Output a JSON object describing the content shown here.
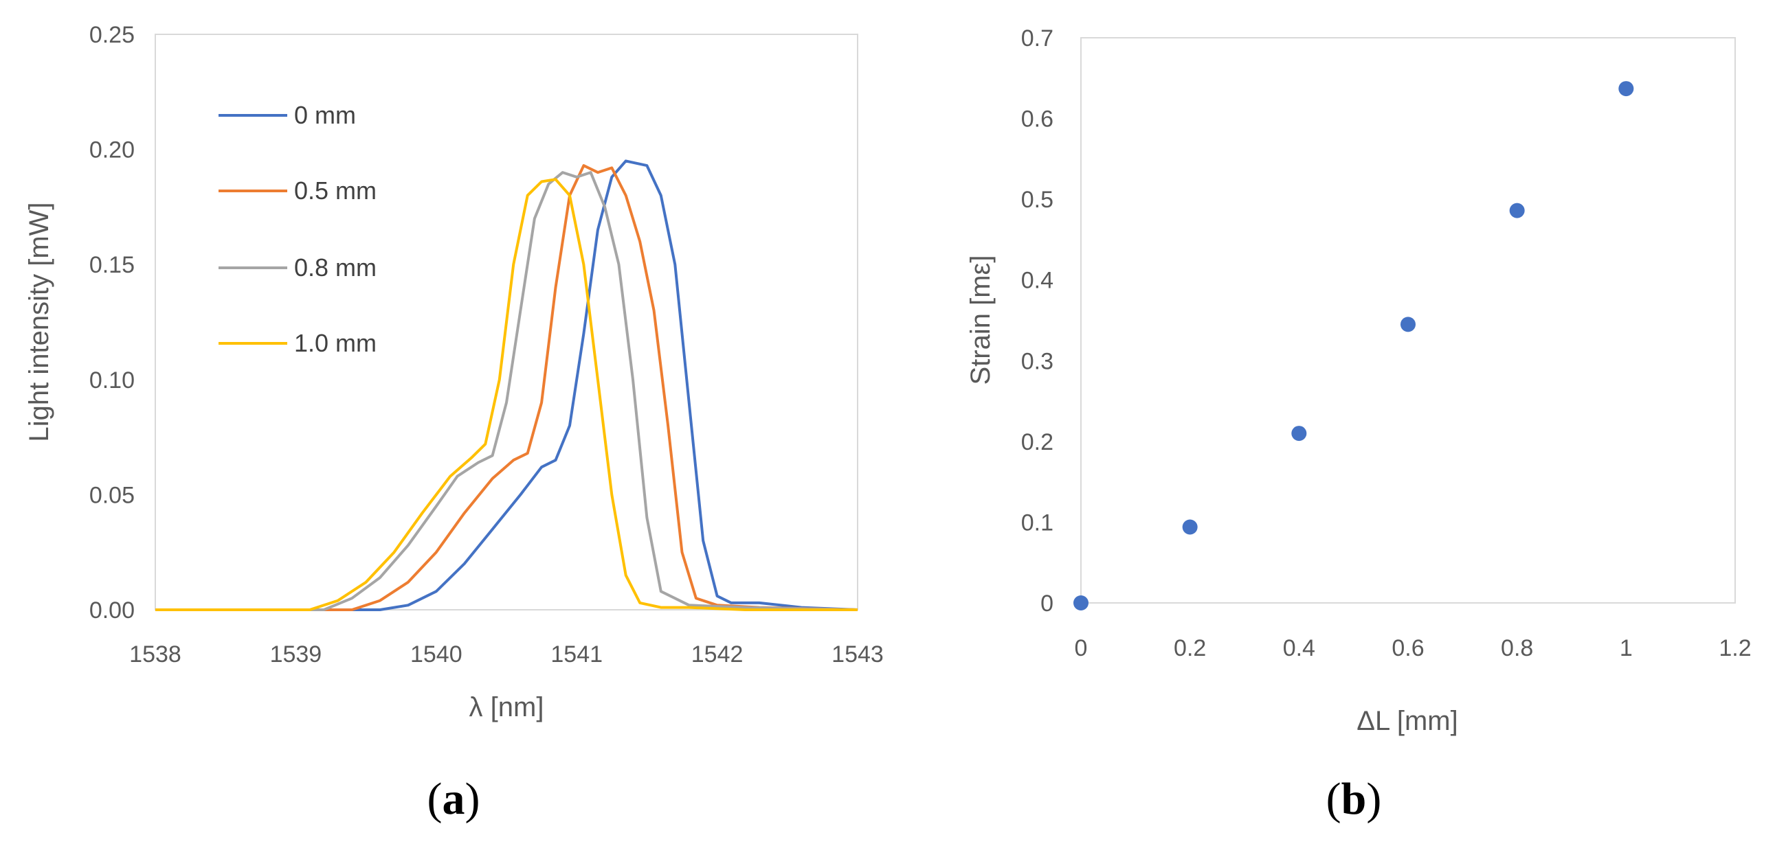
{
  "chart_data": [
    {
      "type": "line",
      "panel_label": "a",
      "title": "",
      "xlabel": "λ [nm]",
      "ylabel": "Light intensity [mW]",
      "xlim": [
        1538,
        1543
      ],
      "ylim": [
        0,
        0.25
      ],
      "xticks": [
        "1538",
        "1539",
        "1540",
        "1541",
        "1542",
        "1543"
      ],
      "yticks": [
        "0.00",
        "0.05",
        "0.10",
        "0.15",
        "0.20",
        "0.25"
      ],
      "grid": false,
      "legend_position": "top-left",
      "series": [
        {
          "name": "0 mm",
          "color": "#4472c4",
          "x": [
            1538,
            1539.6,
            1539.8,
            1540.0,
            1540.2,
            1540.4,
            1540.6,
            1540.75,
            1540.85,
            1540.95,
            1541.05,
            1541.15,
            1541.25,
            1541.35,
            1541.5,
            1541.6,
            1541.7,
            1541.8,
            1541.9,
            1542.0,
            1542.1,
            1542.3,
            1542.6,
            1543
          ],
          "y": [
            0,
            0,
            0.002,
            0.008,
            0.02,
            0.035,
            0.05,
            0.062,
            0.065,
            0.08,
            0.12,
            0.165,
            0.188,
            0.195,
            0.193,
            0.18,
            0.15,
            0.09,
            0.03,
            0.006,
            0.003,
            0.003,
            0.001,
            0
          ]
        },
        {
          "name": "0.5 mm",
          "color": "#ed7d31",
          "x": [
            1538,
            1539.4,
            1539.6,
            1539.8,
            1540.0,
            1540.2,
            1540.4,
            1540.55,
            1540.65,
            1540.75,
            1540.85,
            1540.95,
            1541.05,
            1541.15,
            1541.25,
            1541.35,
            1541.45,
            1541.55,
            1541.65,
            1541.75,
            1541.85,
            1542.0,
            1542.3,
            1543
          ],
          "y": [
            0,
            0,
            0.004,
            0.012,
            0.025,
            0.042,
            0.057,
            0.065,
            0.068,
            0.09,
            0.14,
            0.18,
            0.193,
            0.19,
            0.192,
            0.18,
            0.16,
            0.13,
            0.08,
            0.025,
            0.005,
            0.002,
            0.001,
            0
          ]
        },
        {
          "name": "0.8 mm",
          "color": "#a5a5a5",
          "x": [
            1538,
            1539.2,
            1539.4,
            1539.6,
            1539.8,
            1540.0,
            1540.15,
            1540.3,
            1540.4,
            1540.5,
            1540.6,
            1540.7,
            1540.8,
            1540.9,
            1541.0,
            1541.1,
            1541.2,
            1541.3,
            1541.4,
            1541.5,
            1541.6,
            1541.8,
            1542.2,
            1543
          ],
          "y": [
            0,
            0,
            0.005,
            0.014,
            0.028,
            0.045,
            0.058,
            0.064,
            0.067,
            0.09,
            0.13,
            0.17,
            0.185,
            0.19,
            0.188,
            0.19,
            0.175,
            0.15,
            0.1,
            0.04,
            0.008,
            0.002,
            0.001,
            0
          ]
        },
        {
          "name": "1.0 mm",
          "color": "#ffc000",
          "x": [
            1538,
            1539.1,
            1539.3,
            1539.5,
            1539.7,
            1539.9,
            1540.1,
            1540.25,
            1540.35,
            1540.45,
            1540.55,
            1540.65,
            1540.75,
            1540.85,
            1540.95,
            1541.05,
            1541.15,
            1541.25,
            1541.35,
            1541.45,
            1541.6,
            1541.8,
            1542.2,
            1543
          ],
          "y": [
            0,
            0,
            0.004,
            0.012,
            0.025,
            0.042,
            0.058,
            0.066,
            0.072,
            0.1,
            0.15,
            0.18,
            0.186,
            0.187,
            0.18,
            0.15,
            0.1,
            0.05,
            0.015,
            0.003,
            0.001,
            0.001,
            0,
            0
          ]
        }
      ]
    },
    {
      "type": "scatter",
      "panel_label": "b",
      "title": "",
      "xlabel": "ΔL [mm]",
      "ylabel": "Strain [mε]",
      "xlim": [
        0,
        1.2
      ],
      "ylim": [
        0,
        0.7
      ],
      "xticks": [
        "0",
        "0.2",
        "0.4",
        "0.6",
        "0.8",
        "1",
        "1.2"
      ],
      "yticks": [
        "0",
        "0.1",
        "0.2",
        "0.3",
        "0.4",
        "0.5",
        "0.6",
        "0.7"
      ],
      "grid": false,
      "series": [
        {
          "name": "Strain",
          "color": "#4472c4",
          "x": [
            0,
            0.2,
            0.4,
            0.6,
            0.8,
            1.0
          ],
          "y": [
            0,
            0.094,
            0.21,
            0.345,
            0.486,
            0.637
          ]
        }
      ]
    }
  ]
}
